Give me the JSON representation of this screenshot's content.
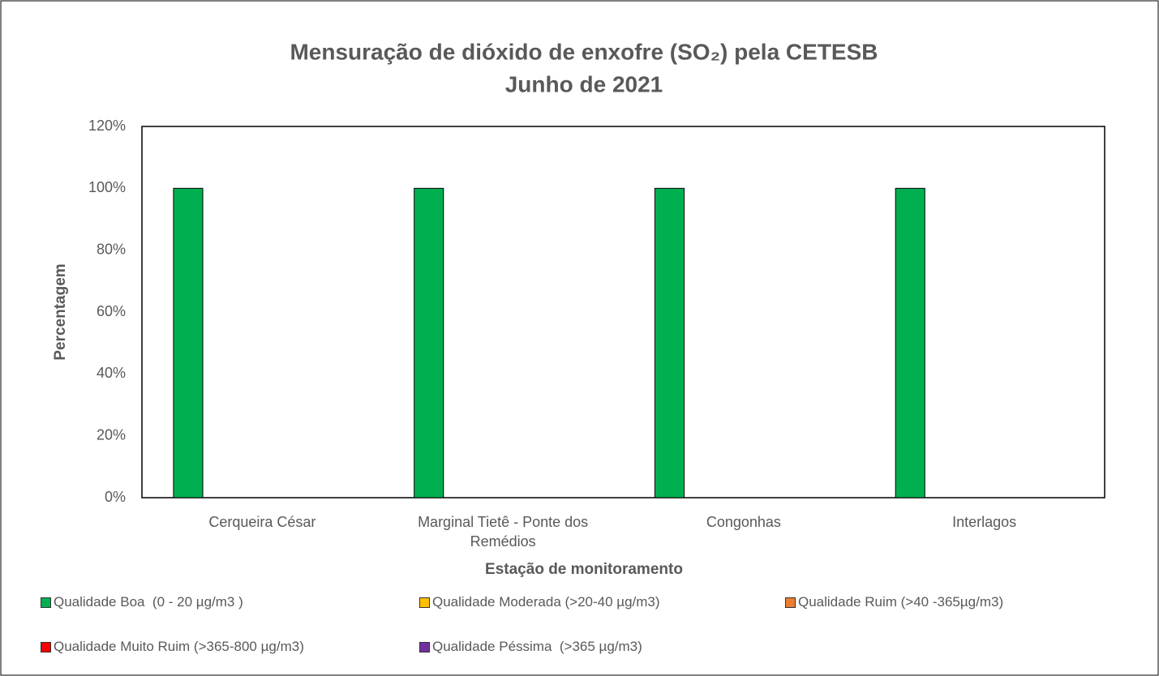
{
  "chart_data": {
    "type": "bar",
    "title": "Mensuração de dióxido de enxofre (SO₂) pela CETESB",
    "subtitle": "Junho de 2021",
    "x_label": "Estação de monitoramento",
    "y_label": "Percentagem",
    "categories": [
      "Cerqueira César",
      "Marginal Tietê - Ponte dos Remédios",
      "Congonhas",
      "Interlagos"
    ],
    "series": [
      {
        "name": "Qualidade Boa  (0 - 20 µg/m3 )",
        "color": "#00b050",
        "values": [
          100,
          100,
          100,
          100
        ]
      },
      {
        "name": "Qualidade Moderada (>20-40 µg/m3)",
        "color": "#ffc000",
        "values": [
          0,
          0,
          0,
          0
        ]
      },
      {
        "name": "Qualidade Ruim (>40 -365µg/m3)",
        "color": "#ed7d31",
        "values": [
          0,
          0,
          0,
          0
        ]
      },
      {
        "name": "Qualidade Muito Ruim (>365-800 µg/m3)",
        "color": "#ff0000",
        "values": [
          0,
          0,
          0,
          0
        ]
      },
      {
        "name": "Qualidade Péssima  (>365 µg/m3)",
        "color": "#7030a0",
        "values": [
          0,
          0,
          0,
          0
        ]
      }
    ],
    "ylim": [
      0,
      120
    ],
    "yticks": [
      {
        "value": 0,
        "label": "0%"
      },
      {
        "value": 20,
        "label": "20%"
      },
      {
        "value": 40,
        "label": "40%"
      },
      {
        "value": 60,
        "label": "60%"
      },
      {
        "value": 80,
        "label": "80%"
      },
      {
        "value": 100,
        "label": "100%"
      },
      {
        "value": 120,
        "label": "120%"
      }
    ],
    "grid": false,
    "legend": "bottom"
  }
}
